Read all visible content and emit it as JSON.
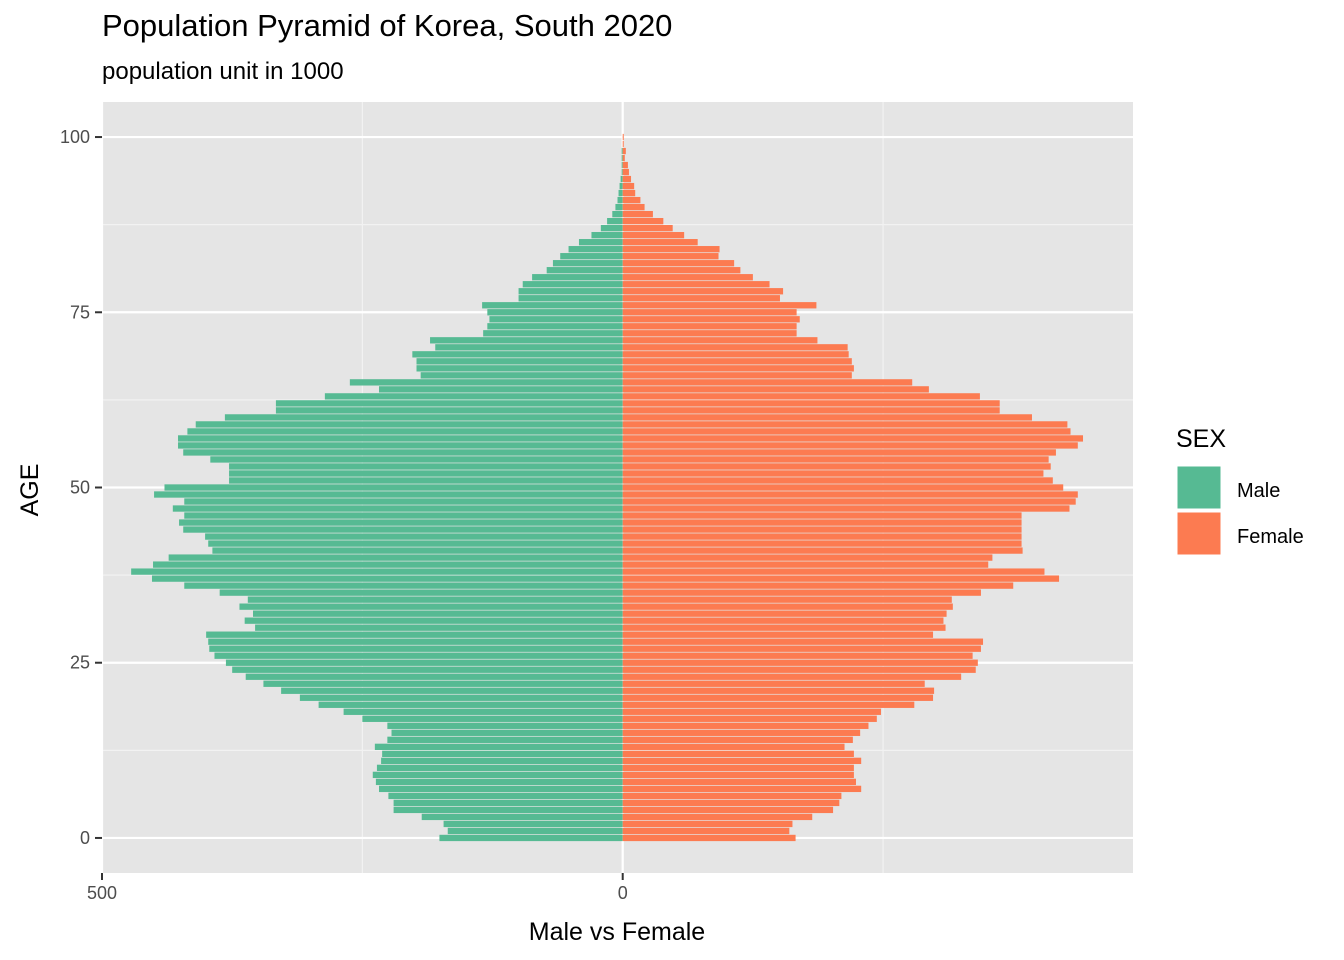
{
  "chart_data": {
    "type": "bar",
    "orientation": "horizontal",
    "title": "Population Pyramid of Korea, South 2020",
    "subtitle": "population unit in 1000",
    "xlabel": "Male vs Female",
    "ylabel": "AGE",
    "xlim": [
      -500,
      490
    ],
    "ylim": [
      -5,
      105
    ],
    "x_ticks": [
      -500,
      0
    ],
    "x_tick_labels": [
      "500",
      "0"
    ],
    "y_ticks": [
      0,
      25,
      50,
      75,
      100
    ],
    "y_tick_labels": [
      "0",
      "25",
      "50",
      "75",
      "100"
    ],
    "grid": true,
    "legend": {
      "title": "SEX",
      "position": "right"
    },
    "ages": [
      0,
      1,
      2,
      3,
      4,
      5,
      6,
      7,
      8,
      9,
      10,
      11,
      12,
      13,
      14,
      15,
      16,
      17,
      18,
      19,
      20,
      21,
      22,
      23,
      24,
      25,
      26,
      27,
      28,
      29,
      30,
      31,
      32,
      33,
      34,
      35,
      36,
      37,
      38,
      39,
      40,
      41,
      42,
      43,
      44,
      45,
      46,
      47,
      48,
      49,
      50,
      51,
      52,
      53,
      54,
      55,
      56,
      57,
      58,
      59,
      60,
      61,
      62,
      63,
      64,
      65,
      66,
      67,
      68,
      69,
      70,
      71,
      72,
      73,
      74,
      75,
      76,
      77,
      78,
      79,
      80,
      81,
      82,
      83,
      84,
      85,
      86,
      87,
      88,
      89,
      90,
      91,
      92,
      93,
      94,
      95,
      96,
      97,
      98,
      99,
      100
    ],
    "series": [
      {
        "name": "Male",
        "color": "#56BA93",
        "values": [
          176,
          168,
          172,
          193,
          220,
          220,
          225,
          234,
          237,
          240,
          236,
          232,
          231,
          238,
          226,
          222,
          226,
          250,
          268,
          292,
          310,
          328,
          345,
          362,
          375,
          381,
          392,
          397,
          398,
          400,
          353,
          363,
          355,
          368,
          360,
          387,
          421,
          452,
          472,
          451,
          436,
          394,
          398,
          401,
          422,
          426,
          421,
          432,
          421,
          450,
          440,
          378,
          378,
          378,
          396,
          422,
          427,
          427,
          418,
          410,
          382,
          333,
          333,
          286,
          234,
          262,
          194,
          198,
          198,
          202,
          180,
          185,
          134,
          130,
          128,
          130,
          135,
          100,
          100,
          96,
          87,
          73,
          67,
          60,
          52,
          42,
          30,
          21,
          15,
          10,
          7,
          5,
          4,
          3,
          2,
          1,
          1,
          1,
          1,
          0,
          0
        ]
      },
      {
        "name": "Female",
        "color": "#FC7B51",
        "values": [
          166,
          160,
          163,
          182,
          202,
          208,
          210,
          229,
          224,
          222,
          222,
          229,
          222,
          213,
          221,
          228,
          236,
          244,
          248,
          280,
          298,
          299,
          290,
          325,
          339,
          341,
          336,
          344,
          346,
          298,
          310,
          308,
          311,
          317,
          316,
          344,
          375,
          419,
          405,
          351,
          355,
          384,
          383,
          383,
          383,
          383,
          383,
          429,
          435,
          437,
          423,
          413,
          404,
          411,
          409,
          416,
          437,
          442,
          430,
          427,
          393,
          362,
          362,
          343,
          294,
          278,
          220,
          222,
          220,
          217,
          216,
          187,
          167,
          167,
          170,
          167,
          186,
          151,
          154,
          141,
          125,
          113,
          107,
          92,
          93,
          72,
          59,
          48,
          39,
          29,
          21,
          17,
          12,
          11,
          8,
          6,
          5,
          2,
          3,
          1,
          1
        ]
      }
    ]
  }
}
